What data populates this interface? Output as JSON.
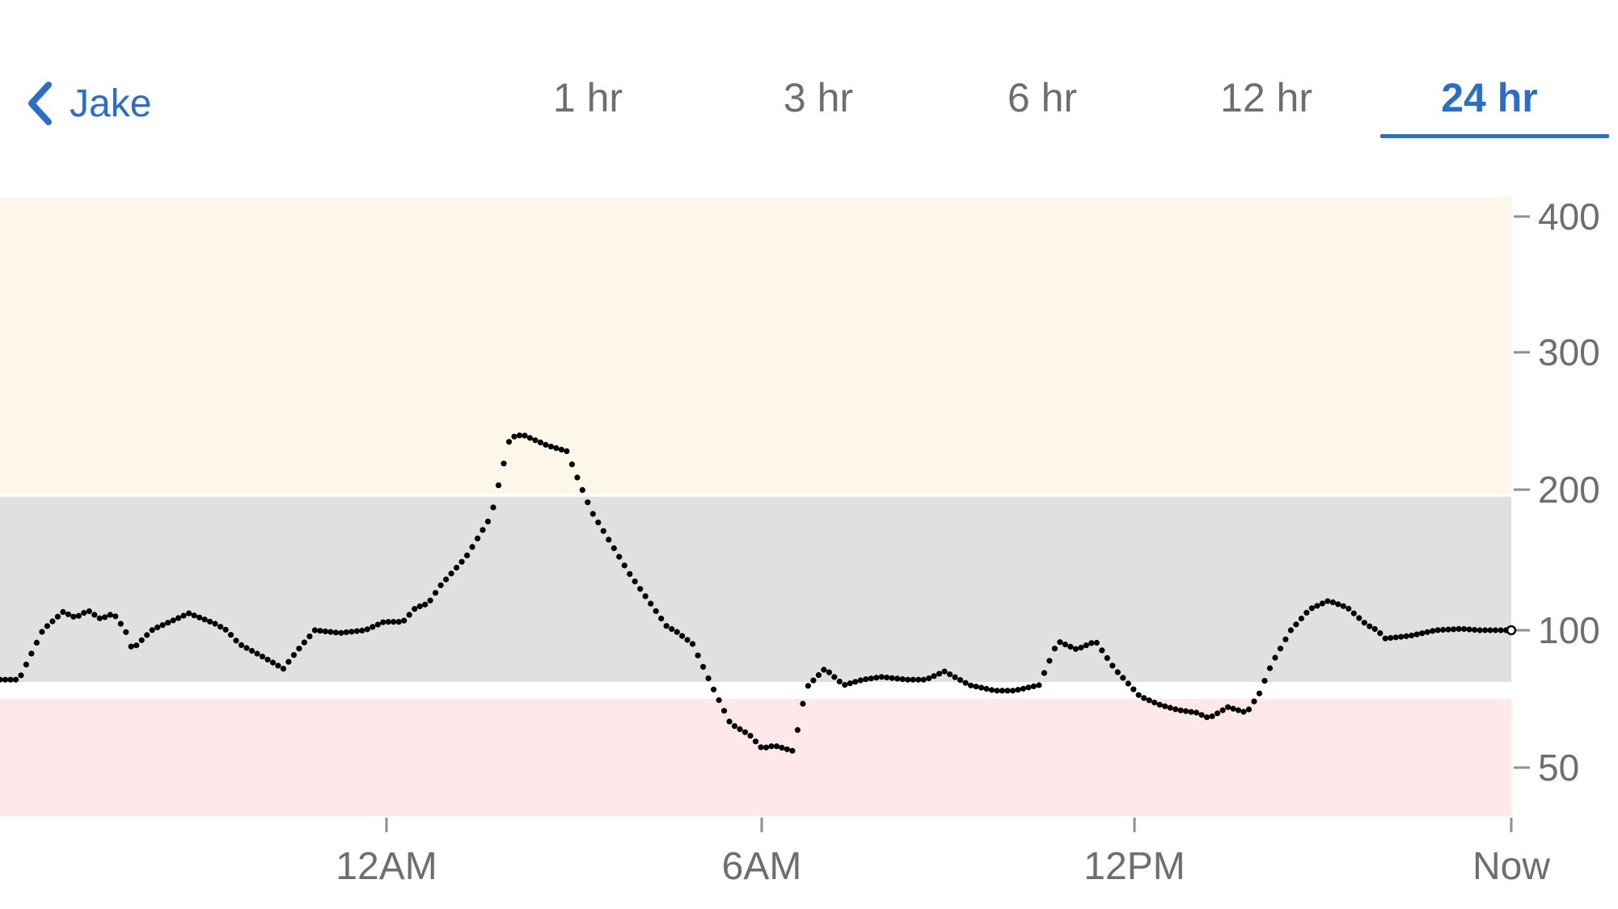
{
  "header": {
    "back_label": "Jake",
    "tabs": [
      {
        "label": "1 hr",
        "active": false
      },
      {
        "label": "3 hr",
        "active": false
      },
      {
        "label": "6 hr",
        "active": false
      },
      {
        "label": "12 hr",
        "active": false
      },
      {
        "label": "24 hr",
        "active": true
      }
    ]
  },
  "colors": {
    "accent": "#2a6ecb",
    "high_band": "#fdf7ea",
    "in_range_band": "#e0e0e0",
    "low_band": "#fee8ea",
    "points": "#000000",
    "muted_text": "#6d6d72"
  },
  "chart_data": {
    "type": "scatter",
    "title": "",
    "xlabel": "",
    "ylabel": "",
    "x_range_hours": [
      -24,
      0
    ],
    "x_ticks": [
      {
        "label": "12AM",
        "hours_ago": -19
      },
      {
        "label": "6AM",
        "hours_ago": -13
      },
      {
        "label": "12PM",
        "hours_ago": -7
      },
      {
        "label": "Now",
        "hours_ago": 0
      }
    ],
    "y_ticks": [
      {
        "label": "400",
        "value": 400
      },
      {
        "label": "300",
        "value": 300
      },
      {
        "label": "200",
        "value": 200
      },
      {
        "label": "100",
        "value": 100
      },
      {
        "label": "50",
        "value": 50
      }
    ],
    "y_tick_pairs": [
      [
        400,
        208
      ],
      [
        300,
        342
      ],
      [
        200,
        476
      ],
      [
        100,
        611
      ],
      [
        50,
        745
      ]
    ],
    "bands": [
      {
        "name": "high",
        "from": 195,
        "to": 400,
        "color": "#fdf7ea"
      },
      {
        "name": "in-range",
        "from": 80,
        "to": 195,
        "color": "#e0e0e0"
      },
      {
        "name": "low",
        "from": 0,
        "to": 75,
        "color": "#fee8ea"
      }
    ],
    "grid": false,
    "legend": "none",
    "series_keypoints": [
      [
        -24.0,
        82
      ],
      [
        -23.7,
        82
      ],
      [
        -23.3,
        101
      ],
      [
        -23.0,
        113
      ],
      [
        -22.8,
        109
      ],
      [
        -22.6,
        114
      ],
      [
        -22.4,
        108
      ],
      [
        -22.2,
        112
      ],
      [
        -21.9,
        93
      ],
      [
        -21.5,
        102
      ],
      [
        -21.0,
        112
      ],
      [
        -20.6,
        105
      ],
      [
        -20.2,
        95
      ],
      [
        -19.8,
        90
      ],
      [
        -19.5,
        86
      ],
      [
        -19.3,
        92
      ],
      [
        -19.0,
        100
      ],
      [
        -18.6,
        99
      ],
      [
        -18.2,
        100
      ],
      [
        -17.9,
        106
      ],
      [
        -17.6,
        106
      ],
      [
        -17.4,
        116
      ],
      [
        -17.2,
        119
      ],
      [
        -17.0,
        132
      ],
      [
        -16.6,
        152
      ],
      [
        -16.2,
        181
      ],
      [
        -15.9,
        238
      ],
      [
        -15.7,
        240
      ],
      [
        -15.3,
        232
      ],
      [
        -15.0,
        228
      ],
      [
        -14.8,
        205
      ],
      [
        -14.6,
        184
      ],
      [
        -14.3,
        162
      ],
      [
        -14.0,
        140
      ],
      [
        -13.7,
        121
      ],
      [
        -13.4,
        102
      ],
      [
        -13.0,
        95
      ],
      [
        -12.7,
        80
      ],
      [
        -12.4,
        66
      ],
      [
        -12.1,
        62
      ],
      [
        -11.9,
        57
      ],
      [
        -11.7,
        58
      ],
      [
        -11.4,
        56
      ],
      [
        -11.2,
        79
      ],
      [
        -10.9,
        86
      ],
      [
        -10.6,
        80
      ],
      [
        -10.3,
        82
      ],
      [
        -10.0,
        83
      ],
      [
        -9.6,
        82
      ],
      [
        -9.3,
        82
      ],
      [
        -9.0,
        85
      ],
      [
        -8.6,
        80
      ],
      [
        -8.2,
        78
      ],
      [
        -7.9,
        78
      ],
      [
        -7.5,
        80
      ],
      [
        -7.2,
        96
      ],
      [
        -6.9,
        93
      ],
      [
        -6.6,
        96
      ],
      [
        -6.3,
        86
      ],
      [
        -5.9,
        76
      ],
      [
        -5.6,
        73
      ],
      [
        -5.3,
        71
      ],
      [
        -5.0,
        70
      ],
      [
        -4.8,
        68
      ],
      [
        -4.5,
        72
      ],
      [
        -4.2,
        70
      ],
      [
        -4.0,
        77
      ],
      [
        -3.8,
        88
      ],
      [
        -3.5,
        100
      ],
      [
        -3.2,
        115
      ],
      [
        -2.9,
        121
      ],
      [
        -2.6,
        116
      ],
      [
        -2.3,
        104
      ],
      [
        -2.0,
        97
      ],
      [
        -1.6,
        98
      ],
      [
        -1.2,
        100
      ],
      [
        -0.8,
        101
      ],
      [
        -0.5,
        100
      ],
      [
        0.0,
        100
      ]
    ]
  }
}
